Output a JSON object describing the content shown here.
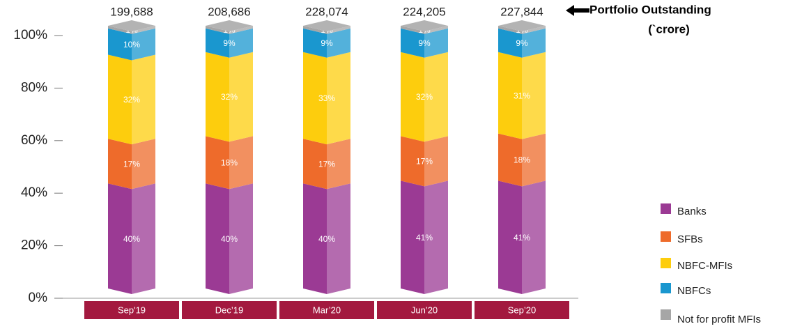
{
  "chart_data": {
    "type": "stacked_bar",
    "categories": [
      "Sep'19",
      "Dec’19",
      "Mar’20",
      "Jun’20",
      "Sep’20"
    ],
    "series": [
      {
        "name": "Banks",
        "color": "#9b3a94",
        "values": [
          40,
          40,
          40,
          41,
          41
        ],
        "value_labels": [
          "40%",
          "40%",
          "40%",
          "41%",
          "41%"
        ]
      },
      {
        "name": "SFBs",
        "color": "#ee6b2b",
        "values": [
          17,
          18,
          17,
          17,
          18
        ],
        "value_labels": [
          "17%",
          "18%",
          "17%",
          "17%",
          "18%"
        ]
      },
      {
        "name": "NBFC-MFIs",
        "color": "#fdcd0d",
        "values": [
          32,
          32,
          33,
          32,
          31
        ],
        "value_labels": [
          "32%",
          "32%",
          "33%",
          "32%",
          "31%"
        ]
      },
      {
        "name": "NBFCs",
        "color": "#1a97cf",
        "values": [
          10,
          9,
          9,
          9,
          9
        ],
        "value_labels": [
          "10%",
          "9%",
          "9%",
          "9%",
          "9%"
        ]
      },
      {
        "name": "Not for profit MFIs",
        "color": "#a6a6a6",
        "values": [
          1,
          1,
          1,
          1,
          1
        ],
        "value_labels": [
          "1%",
          "1%",
          "1%",
          "1%",
          "1%"
        ]
      }
    ],
    "portfolio_outstanding": {
      "label": "Portfolio Outstanding",
      "unit": "(`crore)",
      "values": [
        199688,
        208686,
        228074,
        224205,
        227844
      ],
      "value_labels": [
        "199,688",
        "208,686",
        "228,074",
        "224,205",
        "227,844"
      ]
    },
    "ylim": [
      0,
      100
    ],
    "yticks": [
      {
        "value": 0,
        "label": "0%"
      },
      {
        "value": 20,
        "label": "20%"
      },
      {
        "value": 40,
        "label": "40%"
      },
      {
        "value": 60,
        "label": "60%"
      },
      {
        "value": 80,
        "label": "80%"
      },
      {
        "value": 100,
        "label": "100%"
      }
    ],
    "legend": "right"
  }
}
